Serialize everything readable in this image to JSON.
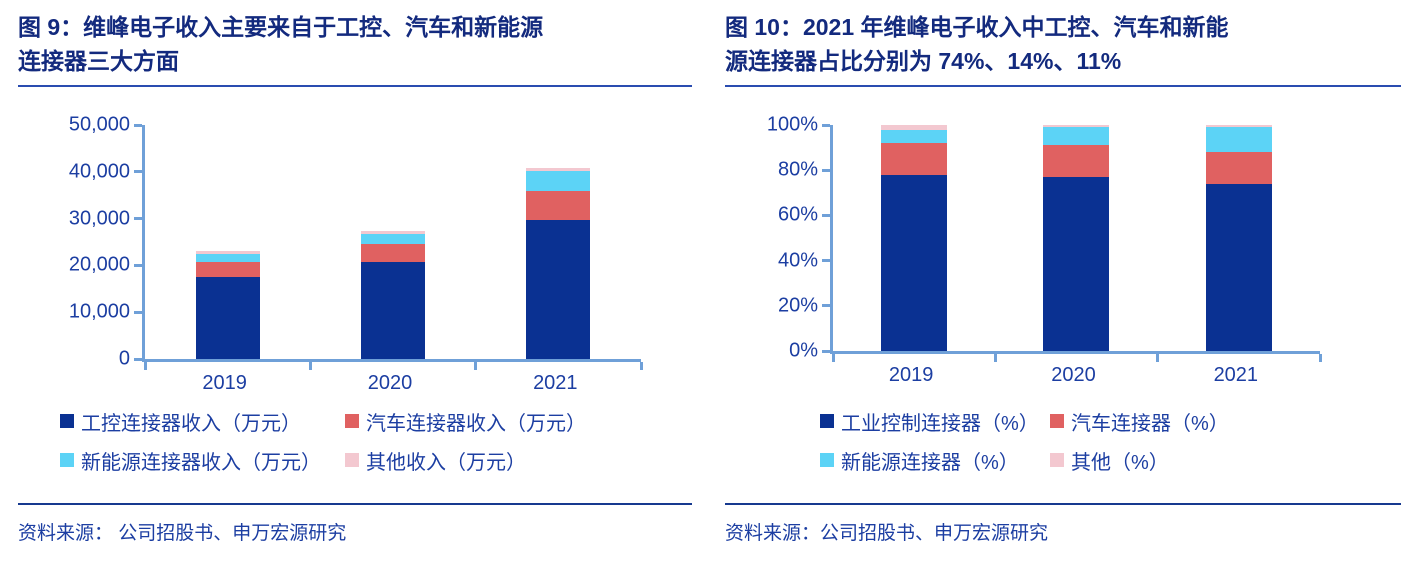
{
  "style": {
    "title_color": "#132a7e",
    "text_color": "#1c3ea2",
    "axis_color": "#6fa0d8",
    "rule_color": "#16398f"
  },
  "figures": [
    {
      "title_line1": "图 9：维峰电子收入主要来自于工控、汽车和新能源",
      "title_line2": "连接器三大方面",
      "source": "资料来源： 公司招股书、申万宏源研究"
    },
    {
      "title_line1": "图 10：2021 年维峰电子收入中工控、汽车和新能",
      "title_line2": "源连接器占比分别为 74%、14%、11%",
      "source": "资料来源：公司招股书、申万宏源研究"
    }
  ],
  "chart_data": [
    {
      "type": "bar",
      "stacked": true,
      "title": "维峰电子收入主要来自于工控、汽车和新能源连接器三大方面",
      "categories": [
        "2019",
        "2020",
        "2021"
      ],
      "series": [
        {
          "name": "工控连接器收入（万元）",
          "color": "#0a3192",
          "values": [
            17500,
            20700,
            29700
          ]
        },
        {
          "name": "汽车连接器收入（万元）",
          "color": "#e06161",
          "values": [
            3300,
            3800,
            6100
          ]
        },
        {
          "name": "新能源连接器收入（万元）",
          "color": "#5cd3f6",
          "values": [
            1700,
            2200,
            4300
          ]
        },
        {
          "name": "其他收入（万元）",
          "color": "#f3c8d0",
          "values": [
            500,
            600,
            700
          ]
        }
      ],
      "xlabel": "",
      "ylabel": "",
      "ylim": [
        0,
        50000
      ],
      "ytick_values": [
        0,
        10000,
        20000,
        30000,
        40000,
        50000
      ],
      "ytick_labels": [
        "0",
        "10,000",
        "20,000",
        "30,000",
        "40,000",
        "50,000"
      ],
      "grid": false,
      "legend_position": "bottom"
    },
    {
      "type": "bar",
      "stacked": true,
      "title": "2021 年维峰电子收入中工控、汽车和新能源连接器占比分别为 74%、14%、11%",
      "categories": [
        "2019",
        "2020",
        "2021"
      ],
      "series": [
        {
          "name": "工业控制连接器（%）",
          "color": "#0a3192",
          "values": [
            78,
            77,
            74
          ]
        },
        {
          "name": "汽车连接器（%）",
          "color": "#e06161",
          "values": [
            14,
            14,
            14
          ]
        },
        {
          "name": "新能源连接器（%）",
          "color": "#5cd3f6",
          "values": [
            6,
            8,
            11
          ]
        },
        {
          "name": "其他（%）",
          "color": "#f3c8d0",
          "values": [
            2,
            1,
            1
          ]
        }
      ],
      "xlabel": "",
      "ylabel": "",
      "ylim": [
        0,
        100
      ],
      "ytick_values": [
        0,
        20,
        40,
        60,
        80,
        100
      ],
      "ytick_labels": [
        "0%",
        "20%",
        "40%",
        "60%",
        "80%",
        "100%"
      ],
      "grid": false,
      "legend_position": "bottom"
    }
  ]
}
